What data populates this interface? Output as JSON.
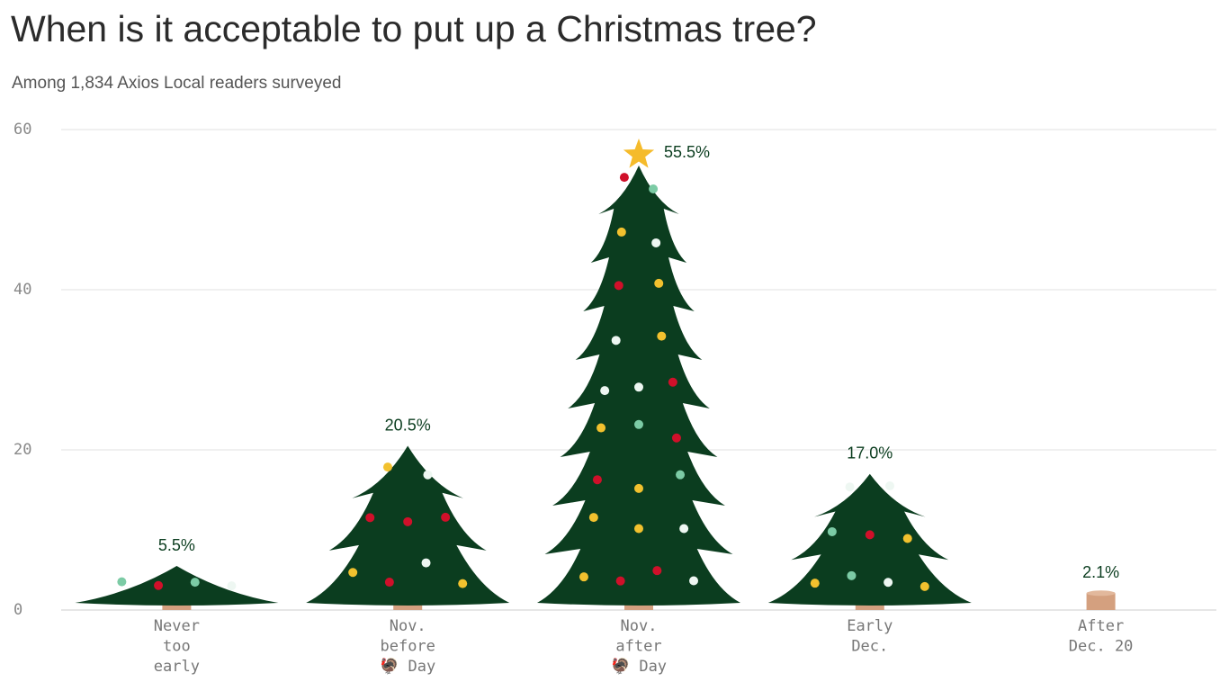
{
  "chart_data": {
    "type": "tree-bar",
    "title": "When is it acceptable to put up a Christmas tree?",
    "subtitle": "Among 1,834 Axios Local readers surveyed",
    "categories": [
      [
        "Never",
        "too",
        "early"
      ],
      [
        "Nov.",
        "before",
        "🦃 Day"
      ],
      [
        "Nov.",
        "after",
        "🦃 Day"
      ],
      [
        "Early",
        "Dec."
      ],
      [
        "After",
        "Dec. 20"
      ]
    ],
    "values": [
      5.5,
      20.5,
      55.5,
      17.0,
      2.1
    ],
    "value_labels": [
      "5.5%",
      "20.5%",
      "55.5%",
      "17.0%",
      "2.1%"
    ],
    "color": "#0b3d1f",
    "ylim": [
      0,
      60
    ],
    "yticks": [
      0,
      20,
      40,
      60
    ],
    "grid": true
  }
}
